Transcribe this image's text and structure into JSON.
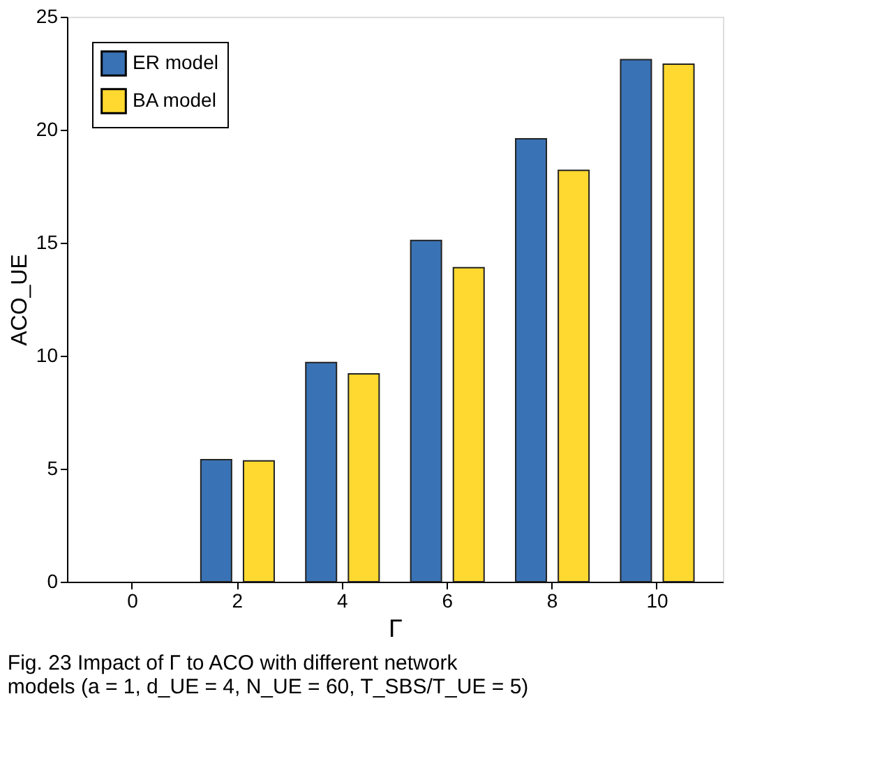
{
  "chart_data": {
    "type": "bar",
    "xlabel": "Γ",
    "ylabel": "ACO_UE",
    "categories": [
      "0",
      "2",
      "4",
      "6",
      "8",
      "10"
    ],
    "series": [
      {
        "name": "ER model",
        "color": "#3a73b5",
        "values": [
          null,
          5.4,
          9.7,
          15.1,
          19.6,
          23.1
        ]
      },
      {
        "name": "BA model",
        "color": "#ffd92f",
        "values": [
          null,
          5.35,
          9.2,
          13.9,
          18.2,
          22.9
        ]
      }
    ],
    "ylim": [
      0,
      25
    ],
    "yticks": [
      0,
      5,
      10,
      15,
      20,
      25
    ],
    "grid": false,
    "legend": "top left",
    "annotations": [
      "Fig. 23 Impact of Γ to ACO with different network",
      "models (a = 1, d_UE = 4, N_UE = 60, T_SBS/T_UE = 5)"
    ]
  }
}
